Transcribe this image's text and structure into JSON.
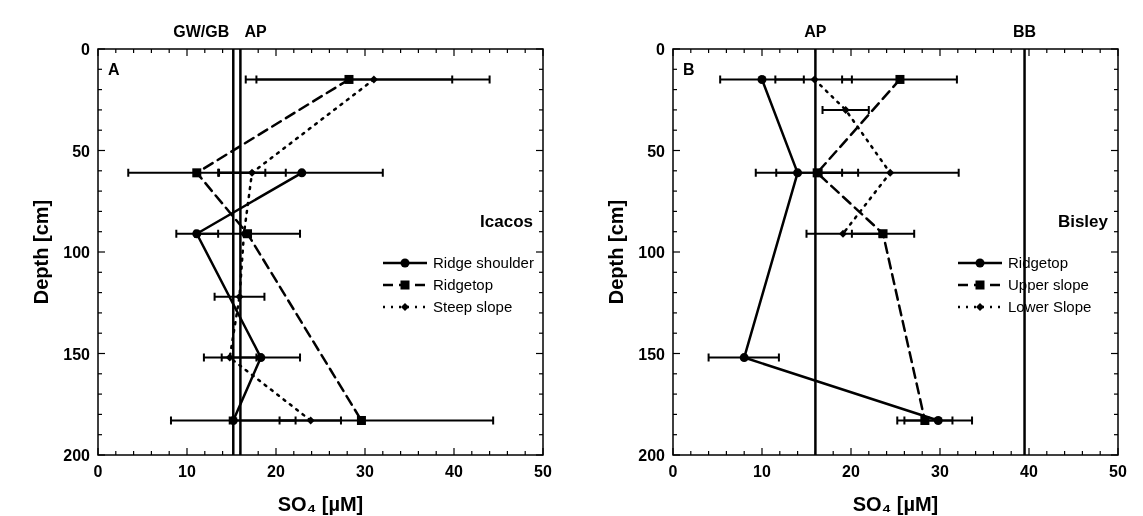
{
  "chart_data": [
    {
      "type": "line",
      "xlabel": "SO₄ [µM]",
      "ylabel": "Depth [cm]",
      "legend_title": "Icacos",
      "legend": "right",
      "annotations": [
        "A"
      ],
      "xlim": [
        0,
        50
      ],
      "ylim": [
        200,
        0
      ],
      "xticks": [
        0,
        {
          "value": 2,
          "label": null
        },
        {
          "value": 4,
          "label": null
        },
        {
          "value": 6,
          "label": null
        },
        {
          "value": 8,
          "label": null
        },
        10,
        {
          "value": 12,
          "label": null
        },
        {
          "value": 14,
          "label": null
        },
        {
          "value": 16,
          "label": null
        },
        {
          "value": 18,
          "label": null
        },
        20,
        {
          "value": 22,
          "label": null
        },
        {
          "value": 24,
          "label": null
        },
        {
          "value": 26,
          "label": null
        },
        {
          "value": 28,
          "label": null
        },
        30,
        {
          "value": 32,
          "label": null
        },
        {
          "value": 34,
          "label": null
        },
        {
          "value": 36,
          "label": null
        },
        {
          "value": 38,
          "label": null
        },
        40,
        {
          "value": 42,
          "label": null
        },
        {
          "value": 44,
          "label": null
        },
        {
          "value": 46,
          "label": null
        },
        {
          "value": 48,
          "label": null
        },
        50
      ],
      "yticks": [
        0,
        {
          "value": 10,
          "label": null
        },
        {
          "value": 20,
          "label": null
        },
        {
          "value": 30,
          "label": null
        },
        {
          "value": 40,
          "label": null
        },
        50,
        {
          "value": 60,
          "label": null
        },
        {
          "value": 70,
          "label": null
        },
        {
          "value": 80,
          "label": null
        },
        {
          "value": 90,
          "label": null
        },
        100,
        {
          "value": 110,
          "label": null
        },
        {
          "value": 120,
          "label": null
        },
        {
          "value": 130,
          "label": null
        },
        {
          "value": 140,
          "label": null
        },
        150,
        {
          "value": 160,
          "label": null
        },
        {
          "value": 170,
          "label": null
        },
        {
          "value": 180,
          "label": null
        },
        {
          "value": 190,
          "label": null
        },
        200
      ],
      "ref_lines": [
        {
          "axis": "x",
          "value": 15.2,
          "label": "GW/GB",
          "color": "#000000"
        },
        {
          "axis": "x",
          "value": 16.0,
          "label": "AP",
          "color": "#000000"
        }
      ],
      "series": [
        {
          "name": "Ridge shoulder",
          "color": "#000000",
          "line_style": "solid",
          "marker": "circle",
          "x": [
            22.9,
            11.1,
            18.3,
            15.2
          ],
          "values": [
            61,
            91,
            152,
            183
          ],
          "xerrors": [
            [
              13.6,
              32.0
            ],
            [
              8.8,
              13.5
            ],
            [
              13.9,
              22.7
            ],
            [
              8.2,
              22.2
            ]
          ]
        },
        {
          "name": "Ridgetop",
          "color": "#000000",
          "line_style": "dashed",
          "marker": "square",
          "x": [
            28.2,
            11.1,
            16.8,
            29.6
          ],
          "values": [
            15,
            61,
            91,
            183
          ],
          "xerrors": [
            [
              16.6,
              39.8
            ],
            [
              3.4,
              18.8
            ],
            5.9,
            [
              14.8,
              44.4
            ]
          ]
        },
        {
          "name": "Steep slope",
          "color": "#000000",
          "line_style": "dotted",
          "marker": "diamond",
          "x": [
            31.0,
            17.3,
            16.4,
            15.9,
            14.8,
            23.9
          ],
          "values": [
            15,
            61,
            91,
            122,
            152,
            183
          ],
          "xerrors": [
            [
              17.8,
              44.0
            ],
            [
              13.5,
              21.1
            ],
            null,
            [
              13.1,
              18.7
            ],
            [
              11.9,
              17.8
            ],
            [
              20.4,
              27.3
            ]
          ]
        }
      ]
    },
    {
      "type": "line",
      "xlabel": "SO₄ [µM]",
      "ylabel": "Depth [cm]",
      "legend_title": "Bisley",
      "legend": "right",
      "annotations": [
        "B"
      ],
      "xlim": [
        0,
        50
      ],
      "ylim": [
        200,
        0
      ],
      "xticks": [
        0,
        {
          "value": 2,
          "label": null
        },
        {
          "value": 4,
          "label": null
        },
        {
          "value": 6,
          "label": null
        },
        {
          "value": 8,
          "label": null
        },
        10,
        {
          "value": 12,
          "label": null
        },
        {
          "value": 14,
          "label": null
        },
        {
          "value": 16,
          "label": null
        },
        {
          "value": 18,
          "label": null
        },
        20,
        {
          "value": 22,
          "label": null
        },
        {
          "value": 24,
          "label": null
        },
        {
          "value": 26,
          "label": null
        },
        {
          "value": 28,
          "label": null
        },
        30,
        {
          "value": 32,
          "label": null
        },
        {
          "value": 34,
          "label": null
        },
        {
          "value": 36,
          "label": null
        },
        {
          "value": 38,
          "label": null
        },
        40,
        {
          "value": 42,
          "label": null
        },
        {
          "value": 44,
          "label": null
        },
        {
          "value": 46,
          "label": null
        },
        {
          "value": 48,
          "label": null
        },
        50
      ],
      "yticks": [
        0,
        {
          "value": 10,
          "label": null
        },
        {
          "value": 20,
          "label": null
        },
        {
          "value": 30,
          "label": null
        },
        {
          "value": 40,
          "label": null
        },
        50,
        {
          "value": 60,
          "label": null
        },
        {
          "value": 70,
          "label": null
        },
        {
          "value": 80,
          "label": null
        },
        {
          "value": 90,
          "label": null
        },
        100,
        {
          "value": 110,
          "label": null
        },
        {
          "value": 120,
          "label": null
        },
        {
          "value": 130,
          "label": null
        },
        {
          "value": 140,
          "label": null
        },
        150,
        {
          "value": 160,
          "label": null
        },
        {
          "value": 170,
          "label": null
        },
        {
          "value": 180,
          "label": null
        },
        {
          "value": 190,
          "label": null
        },
        200
      ],
      "ref_lines": [
        {
          "axis": "x",
          "value": 16.0,
          "label": "AP",
          "color": "#000000"
        },
        {
          "axis": "x",
          "value": 39.5,
          "label": "BB",
          "color": "#000000"
        }
      ],
      "series": [
        {
          "name": "Ridgetop",
          "color": "#000000",
          "line_style": "solid",
          "marker": "circle",
          "x": [
            10.0,
            14.0,
            8.0,
            29.8
          ],
          "values": [
            15,
            61,
            152,
            183
          ],
          "xerrors": [
            [
              5.3,
              14.7
            ],
            [
              9.3,
              19.0
            ],
            [
              4.0,
              11.9
            ],
            [
              26.0,
              33.6
            ]
          ]
        },
        {
          "name": "Upper slope",
          "color": "#000000",
          "line_style": "dashed",
          "marker": "square",
          "x": [
            25.5,
            16.2,
            23.6,
            28.3
          ],
          "values": [
            15,
            61,
            91,
            183
          ],
          "xerrors": [
            [
              19.0,
              31.9
            ],
            [
              11.6,
              20.8
            ],
            [
              20.1,
              27.1
            ],
            [
              25.2,
              31.4
            ]
          ]
        },
        {
          "name": "Lower Slope",
          "color": "#000000",
          "line_style": "dotted",
          "marker": "diamond",
          "x": [
            15.9,
            19.4,
            24.4,
            19.1
          ],
          "values": [
            15,
            30,
            61,
            91
          ],
          "xerrors": [
            [
              11.5,
              20.1
            ],
            [
              16.8,
              22.0
            ],
            [
              16.7,
              32.1
            ],
            [
              15.0,
              23.2
            ]
          ]
        }
      ]
    }
  ]
}
